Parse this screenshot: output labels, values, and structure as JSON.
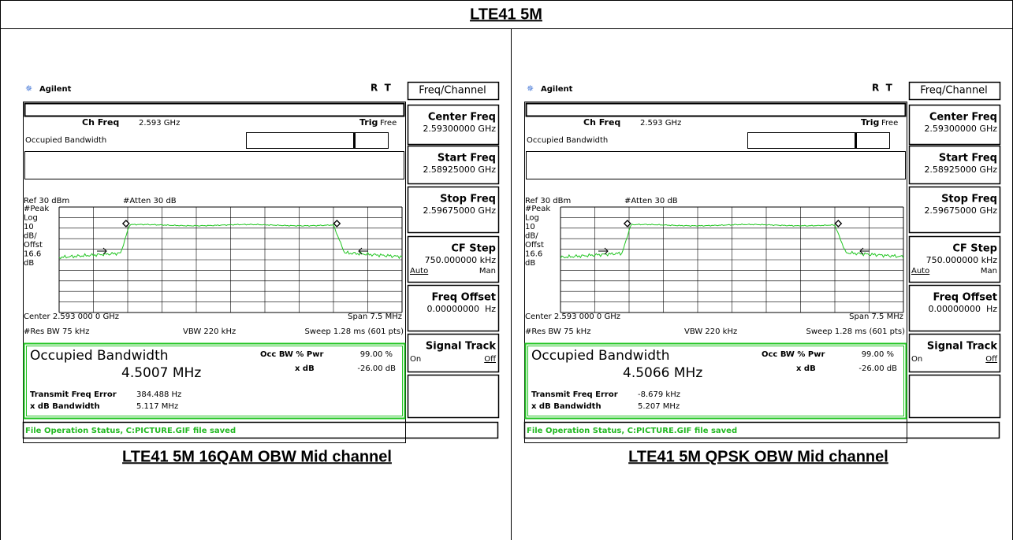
{
  "header": {
    "title": "LTE41 5M"
  },
  "panels": [
    {
      "brand": "Agilent",
      "status_rt": "R  T",
      "menu_title": "Freq/Channel",
      "ch_freq_label": "Ch Freq",
      "ch_freq": "2.593 GHz",
      "trig_label": "Trig",
      "trig": "Free",
      "measurement": "Occupied Bandwidth",
      "ref": "Ref 30 dBm",
      "atten": "#Atten 30 dB",
      "scale_labels": [
        "#Peak",
        "Log",
        "10",
        "dB/",
        "Offst",
        "16.6",
        "dB"
      ],
      "center": "Center 2.593 000 0 GHz",
      "span": "Span 7.5 MHz",
      "res_bw": "#Res BW 75 kHz",
      "vbw": "VBW 220 kHz",
      "sweep": "Sweep 1.28 ms (601 pts)",
      "result_title": "Occupied Bandwidth",
      "result_value": "4.5007 MHz",
      "occ_label": "Occ BW % Pwr",
      "occ_value": "99.00 %",
      "xdb_label": "x dB",
      "xdb_value": "-26.00 dB",
      "tfe_label": "Transmit Freq Error",
      "tfe_value": "384.488 Hz",
      "xbw_label": "x dB Bandwidth",
      "xbw_value": "5.117 MHz",
      "file_status": "File Operation Status, C:PICTURE.GIF file saved",
      "menu": [
        {
          "label": "Center Freq",
          "value": "2.59300000 GHz"
        },
        {
          "label": "Start Freq",
          "value": "2.58925000 GHz"
        },
        {
          "label": "Stop Freq",
          "value": "2.59675000 GHz"
        },
        {
          "label": "CF Step",
          "value": "750.000000 kHz",
          "options": [
            "Auto",
            "Man"
          ]
        },
        {
          "label": "Freq Offset",
          "value": "0.00000000  Hz"
        },
        {
          "label": "Signal Track",
          "options": [
            "On",
            "Off"
          ]
        }
      ],
      "caption": "LTE41 5M 16QAM OBW Mid channel"
    },
    {
      "brand": "Agilent",
      "status_rt": "R  T",
      "menu_title": "Freq/Channel",
      "ch_freq_label": "Ch Freq",
      "ch_freq": "2.593 GHz",
      "trig_label": "Trig",
      "trig": "Free",
      "measurement": "Occupied Bandwidth",
      "ref": "Ref 30 dBm",
      "atten": "#Atten 30 dB",
      "scale_labels": [
        "#Peak",
        "Log",
        "10",
        "dB/",
        "Offst",
        "16.6",
        "dB"
      ],
      "center": "Center 2.593 000 0 GHz",
      "span": "Span 7.5 MHz",
      "res_bw": "#Res BW 75 kHz",
      "vbw": "VBW 220 kHz",
      "sweep": "Sweep 1.28 ms (601 pts)",
      "result_title": "Occupied Bandwidth",
      "result_value": "4.5066 MHz",
      "occ_label": "Occ BW % Pwr",
      "occ_value": "99.00 %",
      "xdb_label": "x dB",
      "xdb_value": "-26.00 dB",
      "tfe_label": "Transmit Freq Error",
      "tfe_value": "-8.679 kHz",
      "xbw_label": "x dB Bandwidth",
      "xbw_value": "5.207 MHz",
      "file_status": "File Operation Status, C:PICTURE.GIF file saved",
      "menu": [
        {
          "label": "Center Freq",
          "value": "2.59300000 GHz"
        },
        {
          "label": "Start Freq",
          "value": "2.58925000 GHz"
        },
        {
          "label": "Stop Freq",
          "value": "2.59675000 GHz"
        },
        {
          "label": "CF Step",
          "value": "750.000000 kHz",
          "options": [
            "Auto",
            "Man"
          ]
        },
        {
          "label": "Freq Offset",
          "value": "0.00000000  Hz"
        },
        {
          "label": "Signal Track",
          "options": [
            "On",
            "Off"
          ]
        }
      ],
      "caption": "LTE41 5M QPSK OBW Mid channel"
    }
  ]
}
